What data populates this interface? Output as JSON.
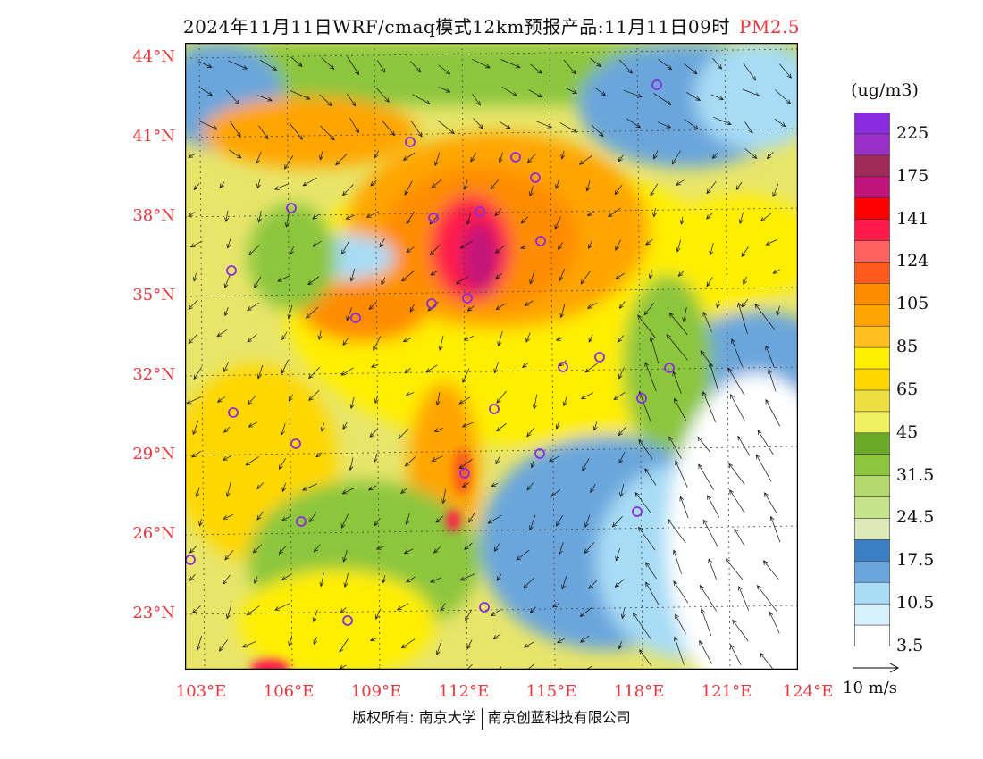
{
  "title": {
    "text": "2024年11月11日WRF/cmaq模式12km预报产品:11月11日09时",
    "variable": "PM2.5"
  },
  "axes": {
    "latitudes": [
      "44°N",
      "41°N",
      "38°N",
      "35°N",
      "32°N",
      "29°N",
      "26°N",
      "23°N"
    ],
    "longitudes": [
      "103°E",
      "106°E",
      "109°E",
      "112°E",
      "115°E",
      "118°E",
      "121°E",
      "124°E"
    ]
  },
  "legend": {
    "unit": "(ug/m3)",
    "levels": [
      "225",
      "175",
      "141",
      "124",
      "105",
      "85",
      "65",
      "45",
      "31.5",
      "24.5",
      "17.5",
      "10.5",
      "3.5"
    ],
    "colors": [
      "#8a2be2",
      "#9b30c8",
      "#a02a5a",
      "#c0147a",
      "#ff0000",
      "#ff1a4a",
      "#ff6060",
      "#ff5a1e",
      "#ff8c00",
      "#ffa500",
      "#ffc020",
      "#ffee00",
      "#ffd700",
      "#eddf40",
      "#f0f060",
      "#6aa92a",
      "#8cc63e",
      "#b4d96e",
      "#c4e38a",
      "#dde9b8",
      "#3a7fc3",
      "#6aa6dc",
      "#a8dcf5",
      "#d6f1fc",
      "#ffffff"
    ]
  },
  "wind_reference": {
    "label": "10 m/s"
  },
  "copyright": {
    "left": "版权所有: 南京大学",
    "right": "南京创蓝科技有限公司"
  }
}
